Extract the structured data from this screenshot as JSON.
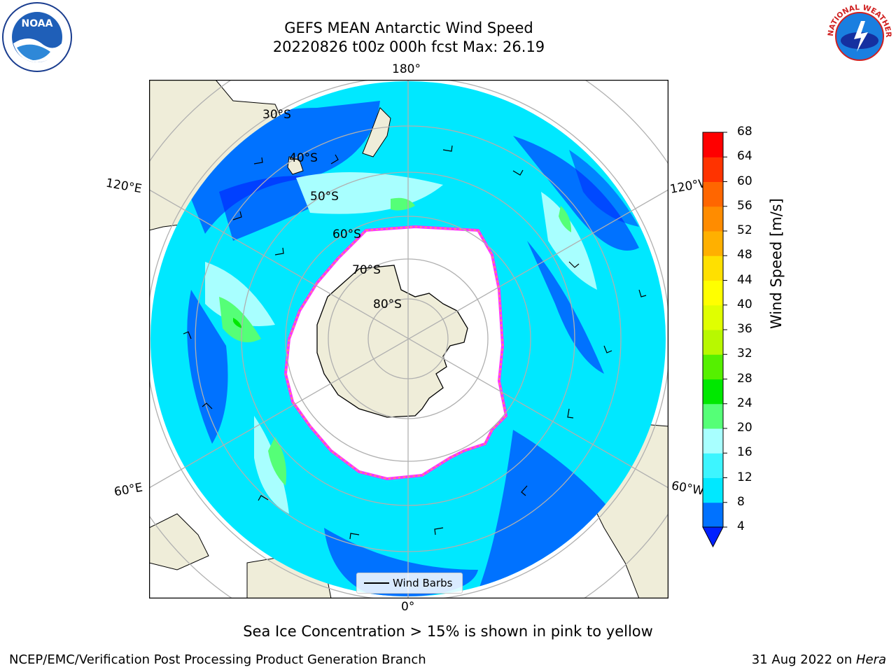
{
  "title": {
    "line1": "GEFS MEAN Antarctic Wind Speed",
    "line2": "20220826 t00z 000h fcst   Max: 26.19"
  },
  "map": {
    "projection": "south-polar-stereographic",
    "lon_labels": {
      "top": "180°",
      "bottom": "0°",
      "left_upper": "120°E",
      "left_lower": "60°E",
      "right_upper": "120°W",
      "right_lower": "60°W"
    },
    "lat_labels": [
      "30°S",
      "40°S",
      "50°S",
      "60°S",
      "70°S",
      "80°S"
    ],
    "legend_label": "Wind Barbs",
    "colors": {
      "land": "#efedd9",
      "ice": "#ffffff",
      "ice_edge_pink": "#ff33ff",
      "ice_edge_orange": "#ffb040",
      "grid": "#b0b0b0"
    }
  },
  "colorbar": {
    "label": "Wind Speed [m/s]",
    "ticks": [
      "4",
      "8",
      "12",
      "16",
      "20",
      "24",
      "28",
      "32",
      "36",
      "40",
      "44",
      "48",
      "52",
      "56",
      "60",
      "64",
      "68"
    ],
    "colors": [
      "#0072ff",
      "#00e8ff",
      "#3df5ff",
      "#a8ffff",
      "#55ff77",
      "#00e800",
      "#55f000",
      "#b8f800",
      "#e0ff00",
      "#ffff00",
      "#ffe000",
      "#ffb000",
      "#ff8c00",
      "#ff6600",
      "#ff3300",
      "#ff0000"
    ],
    "under_color": "#0020ff"
  },
  "note": "Sea Ice Concentration > 15% is shown in pink to yellow",
  "footer": {
    "left": "NCEP/EMC/Verification Post Processing Product Generation Branch",
    "right_date": "31 Aug 2022 on ",
    "right_host": "Hera"
  },
  "logos": {
    "noaa": "NOAA",
    "nws": "NATIONAL WEATHER SERVICE"
  }
}
